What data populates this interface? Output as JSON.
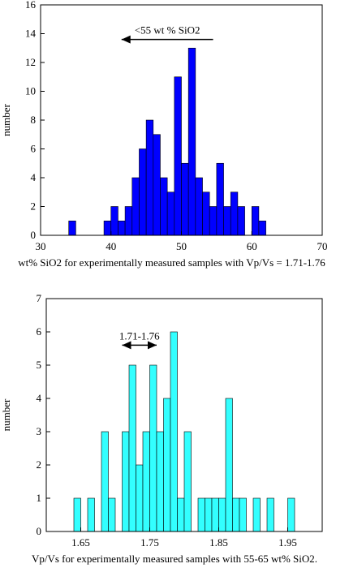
{
  "chart_data": [
    {
      "type": "bar",
      "bar_color": "#0000ff",
      "xlabel": "wt% SiO2 for experimentally measured samples with Vp/Vs = 1.71-1.76",
      "ylabel": "number",
      "xlim": [
        30,
        70
      ],
      "ylim": [
        0,
        16
      ],
      "xticks": [
        30,
        40,
        50,
        60,
        70
      ],
      "yticks": [
        0,
        2,
        4,
        6,
        8,
        10,
        12,
        14,
        16
      ],
      "xtick_labels": [
        "30",
        "40",
        "50",
        "60",
        "70"
      ],
      "ytick_labels": [
        "0",
        "2",
        "4",
        "6",
        "8",
        "10",
        "12",
        "14",
        "16"
      ],
      "bin_width": 1,
      "bins_start": [
        34,
        39,
        40,
        41,
        42,
        43,
        44,
        45,
        46,
        47,
        48,
        49,
        50,
        51,
        52,
        53,
        54,
        55,
        56,
        57,
        58,
        59,
        60,
        61
      ],
      "values": [
        1,
        1,
        2,
        1,
        2,
        4,
        6,
        8,
        7,
        4,
        3,
        11,
        5,
        13,
        4,
        3,
        2,
        5,
        2,
        3,
        2,
        0,
        2,
        1
      ],
      "annotation": {
        "text": "<55 wt % SiO2",
        "arrow_from": 54.5,
        "arrow_to": 41.5,
        "y": 13.6,
        "arrow_heads": "left"
      }
    },
    {
      "type": "bar",
      "bar_color": "#33ffff",
      "xlabel": "Vp/Vs for experimentally measured samples with 55-65 wt% SiO2.",
      "ylabel": "number",
      "xlim": [
        1.6,
        2.0
      ],
      "ylim": [
        0,
        7
      ],
      "xticks": [
        1.65,
        1.75,
        1.85,
        1.95
      ],
      "yticks": [
        0,
        1,
        2,
        3,
        4,
        5,
        6,
        7
      ],
      "xtick_labels": [
        "1.65",
        "1.75",
        "1.85",
        "1.95"
      ],
      "ytick_labels": [
        "0",
        "1",
        "2",
        "3",
        "4",
        "5",
        "6",
        "7"
      ],
      "bin_width": 0.01,
      "bins_start": [
        1.64,
        1.66,
        1.68,
        1.69,
        1.71,
        1.72,
        1.73,
        1.74,
        1.75,
        1.76,
        1.77,
        1.78,
        1.79,
        1.8,
        1.82,
        1.83,
        1.84,
        1.85,
        1.86,
        1.87,
        1.88,
        1.9,
        1.92,
        1.95
      ],
      "values": [
        1,
        1,
        3,
        1,
        3,
        5,
        2,
        3,
        5,
        3,
        4,
        6,
        1,
        3,
        1,
        1,
        1,
        1,
        4,
        1,
        1,
        1,
        1,
        1
      ],
      "annotation": {
        "text": "1.71-1.76",
        "arrow_from": 1.71,
        "arrow_to": 1.76,
        "y": 5.6,
        "arrow_heads": "both"
      }
    }
  ]
}
